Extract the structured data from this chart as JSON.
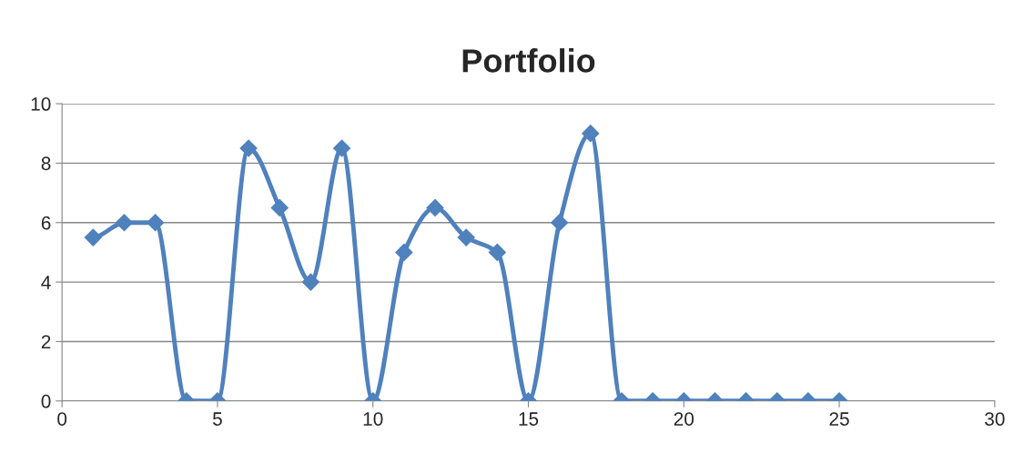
{
  "chart_data": {
    "type": "line",
    "title": "Portfolio",
    "x": [
      1,
      2,
      3,
      4,
      5,
      6,
      7,
      8,
      9,
      10,
      11,
      12,
      13,
      14,
      15,
      16,
      17,
      18,
      19,
      20,
      21,
      22,
      23,
      24,
      25
    ],
    "series": [
      {
        "color": "#4f81bd",
        "values": [
          5.5,
          6,
          6,
          0,
          0,
          8.5,
          6.5,
          4,
          8.5,
          0,
          5,
          6.5,
          5.5,
          5,
          0,
          6,
          9,
          0,
          0,
          0,
          0,
          0,
          0,
          0,
          0
        ]
      }
    ],
    "xlim": [
      0,
      30
    ],
    "xticks": [
      0,
      5,
      10,
      15,
      20,
      25,
      30
    ],
    "ylim": [
      0,
      10
    ],
    "yticks": [
      0,
      2,
      4,
      6,
      8,
      10
    ],
    "grid": "y",
    "marker": "diamond",
    "line_style": "solid"
  }
}
